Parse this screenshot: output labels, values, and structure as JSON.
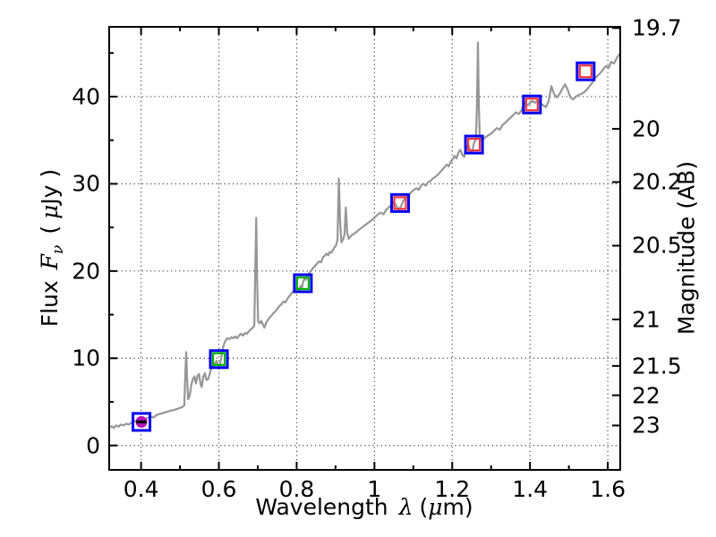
{
  "labels": {
    "xlabel_text": "Wavelength",
    "xlabel_lambda": "λ",
    "xlabel_unit_open": "(",
    "xlabel_mu": "μ",
    "xlabel_unit_close": "m)",
    "ylabel_flux_text": "Flux",
    "ylabel_flux_F": "F",
    "ylabel_flux_nu": "ν",
    "ylabel_flux_unit_open": "(",
    "ylabel_flux_mu": "μ",
    "ylabel_flux_unit_close": "Jy )",
    "ylabel_mag": "Magnitude (AB)"
  },
  "chart_data": {
    "type": "line",
    "title": "",
    "xlabel": "Wavelength λ (μm)",
    "ylabel_left": "Flux Fν (μJy)",
    "ylabel_right": "Magnitude (AB)",
    "grid": "dotted lines at major ticks of bottom and left axes",
    "legend": "none",
    "xlim": [
      0.318,
      1.632
    ],
    "ylim_flux": [
      -2.8,
      48.0
    ],
    "x_major_ticks": [
      0.4,
      0.6,
      0.8,
      1.0,
      1.2,
      1.4,
      1.6
    ],
    "x_major_tick_labels": [
      "0.4",
      "0.6",
      "0.8",
      "1",
      "1.2",
      "1.4",
      "1.6"
    ],
    "x_minor_ticks": [
      0.5,
      0.7,
      0.9,
      1.1,
      1.3,
      1.5
    ],
    "y_major_ticks": [
      0,
      10,
      20,
      30,
      40
    ],
    "y_major_tick_labels": [
      "0",
      "10",
      "20",
      "30",
      "40"
    ],
    "y_minor_ticks": [
      5,
      15,
      25,
      35,
      45
    ],
    "right_axis": {
      "tick_mags": [
        19.7,
        20,
        20.2,
        20.5,
        21,
        21.5,
        22,
        23
      ],
      "tick_labels": [
        "19.7",
        "20",
        "20.2",
        "20.5",
        "21",
        "21.5",
        "22",
        "23"
      ],
      "ab_zero_point": 23.9
    },
    "colors": {
      "spectrum": "#969696",
      "model_square": "#0000ee",
      "observed_red": "#f5333f",
      "observed_green": "#00b200",
      "observed_magenta": "#b413b4",
      "errorbar": "#000000",
      "grid": "#444444",
      "frame": "#000000"
    },
    "series": [
      {
        "name": "spectrum_template",
        "type": "line",
        "color": "#969696",
        "width": 2.2,
        "points": [
          [
            0.318,
            2.05
          ],
          [
            0.325,
            2.2
          ],
          [
            0.33,
            2.0
          ],
          [
            0.336,
            2.3
          ],
          [
            0.342,
            2.15
          ],
          [
            0.348,
            2.4
          ],
          [
            0.355,
            2.3
          ],
          [
            0.362,
            2.5
          ],
          [
            0.368,
            2.4
          ],
          [
            0.375,
            2.6
          ],
          [
            0.382,
            2.8
          ],
          [
            0.388,
            2.7
          ],
          [
            0.394,
            2.9
          ],
          [
            0.4,
            3.0
          ],
          [
            0.406,
            3.1
          ],
          [
            0.412,
            3.0
          ],
          [
            0.418,
            3.2
          ],
          [
            0.425,
            3.3
          ],
          [
            0.432,
            3.2
          ],
          [
            0.44,
            3.5
          ],
          [
            0.448,
            3.6
          ],
          [
            0.455,
            3.7
          ],
          [
            0.462,
            3.8
          ],
          [
            0.47,
            3.9
          ],
          [
            0.478,
            4.0
          ],
          [
            0.486,
            4.1
          ],
          [
            0.494,
            4.2
          ],
          [
            0.5,
            4.3
          ],
          [
            0.506,
            4.4
          ],
          [
            0.511,
            4.6
          ],
          [
            0.5135,
            8.0
          ],
          [
            0.516,
            10.7
          ],
          [
            0.5185,
            7.5
          ],
          [
            0.521,
            5.3
          ],
          [
            0.525,
            5.7
          ],
          [
            0.529,
            6.9
          ],
          [
            0.533,
            7.6
          ],
          [
            0.537,
            7.9
          ],
          [
            0.541,
            7.1
          ],
          [
            0.545,
            8.0
          ],
          [
            0.549,
            8.2
          ],
          [
            0.553,
            7.0
          ],
          [
            0.556,
            6.7
          ],
          [
            0.56,
            7.9
          ],
          [
            0.564,
            8.3
          ],
          [
            0.568,
            7.5
          ],
          [
            0.572,
            7.6
          ],
          [
            0.576,
            8.1
          ],
          [
            0.58,
            8.8
          ],
          [
            0.585,
            9.1
          ],
          [
            0.59,
            9.4
          ],
          [
            0.594,
            9.7
          ],
          [
            0.598,
            9.2
          ],
          [
            0.601,
            8.9
          ],
          [
            0.605,
            9.8
          ],
          [
            0.609,
            10.9
          ],
          [
            0.613,
            11.6
          ],
          [
            0.617,
            12.0
          ],
          [
            0.622,
            12.3
          ],
          [
            0.627,
            12.2
          ],
          [
            0.632,
            12.4
          ],
          [
            0.637,
            12.3
          ],
          [
            0.642,
            12.5
          ],
          [
            0.647,
            12.3
          ],
          [
            0.652,
            12.6
          ],
          [
            0.657,
            12.8
          ],
          [
            0.662,
            12.6
          ],
          [
            0.667,
            12.9
          ],
          [
            0.672,
            12.8
          ],
          [
            0.677,
            13.1
          ],
          [
            0.682,
            13.3
          ],
          [
            0.687,
            13.5
          ],
          [
            0.691,
            13.7
          ],
          [
            0.6935,
            20.0
          ],
          [
            0.696,
            26.1
          ],
          [
            0.6985,
            19.0
          ],
          [
            0.701,
            14.2
          ],
          [
            0.705,
            14.0
          ],
          [
            0.709,
            14.3
          ],
          [
            0.713,
            13.9
          ],
          [
            0.717,
            13.5
          ],
          [
            0.721,
            14.0
          ],
          [
            0.726,
            14.4
          ],
          [
            0.731,
            14.7
          ],
          [
            0.736,
            14.9
          ],
          [
            0.741,
            15.2
          ],
          [
            0.746,
            15.4
          ],
          [
            0.751,
            15.7
          ],
          [
            0.756,
            16.0
          ],
          [
            0.761,
            16.2
          ],
          [
            0.766,
            16.5
          ],
          [
            0.771,
            16.4
          ],
          [
            0.776,
            16.8
          ],
          [
            0.781,
            17.1
          ],
          [
            0.786,
            17.4
          ],
          [
            0.791,
            17.7
          ],
          [
            0.796,
            17.9
          ],
          [
            0.801,
            18.1
          ],
          [
            0.806,
            17.8
          ],
          [
            0.81,
            18.3
          ],
          [
            0.8135,
            18.0
          ],
          [
            0.817,
            18.8
          ],
          [
            0.82,
            19.1
          ],
          [
            0.824,
            19.0
          ],
          [
            0.828,
            19.5
          ],
          [
            0.833,
            19.8
          ],
          [
            0.838,
            20.1
          ],
          [
            0.843,
            20.4
          ],
          [
            0.848,
            20.6
          ],
          [
            0.853,
            20.9
          ],
          [
            0.858,
            21.1
          ],
          [
            0.863,
            21.0
          ],
          [
            0.868,
            21.6
          ],
          [
            0.873,
            21.8
          ],
          [
            0.877,
            22.0
          ],
          [
            0.881,
            21.8
          ],
          [
            0.885,
            22.2
          ],
          [
            0.889,
            22.1
          ],
          [
            0.893,
            22.4
          ],
          [
            0.897,
            22.7
          ],
          [
            0.901,
            22.9
          ],
          [
            0.905,
            23.6
          ],
          [
            0.9085,
            30.6
          ],
          [
            0.912,
            25.5
          ],
          [
            0.915,
            23.3
          ],
          [
            0.919,
            23.6
          ],
          [
            0.923,
            24.2
          ],
          [
            0.9265,
            27.3
          ],
          [
            0.93,
            24.4
          ],
          [
            0.934,
            23.7
          ],
          [
            0.939,
            24.0
          ],
          [
            0.944,
            24.2
          ],
          [
            0.949,
            24.3
          ],
          [
            0.954,
            24.5
          ],
          [
            0.959,
            24.7
          ],
          [
            0.965,
            24.9
          ],
          [
            0.971,
            25.1
          ],
          [
            0.977,
            25.3
          ],
          [
            0.983,
            25.5
          ],
          [
            0.989,
            25.7
          ],
          [
            0.995,
            25.9
          ],
          [
            1.002,
            26.2
          ],
          [
            1.009,
            26.5
          ],
          [
            1.016,
            26.7
          ],
          [
            1.023,
            26.5
          ],
          [
            1.03,
            27.0
          ],
          [
            1.037,
            27.3
          ],
          [
            1.044,
            27.6
          ],
          [
            1.05,
            27.9
          ],
          [
            1.056,
            27.5
          ],
          [
            1.062,
            27.0
          ],
          [
            1.068,
            27.4
          ],
          [
            1.074,
            28.0
          ],
          [
            1.08,
            28.4
          ],
          [
            1.087,
            28.7
          ],
          [
            1.094,
            29.0
          ],
          [
            1.101,
            29.3
          ],
          [
            1.108,
            29.5
          ],
          [
            1.114,
            29.3
          ],
          [
            1.12,
            29.8
          ],
          [
            1.126,
            30.0
          ],
          [
            1.132,
            29.8
          ],
          [
            1.138,
            30.2
          ],
          [
            1.144,
            30.3
          ],
          [
            1.15,
            30.6
          ],
          [
            1.156,
            30.8
          ],
          [
            1.162,
            31.0
          ],
          [
            1.168,
            31.3
          ],
          [
            1.174,
            31.6
          ],
          [
            1.18,
            31.9
          ],
          [
            1.186,
            32.2
          ],
          [
            1.191,
            32.0
          ],
          [
            1.196,
            32.5
          ],
          [
            1.201,
            32.8
          ],
          [
            1.206,
            33.2
          ],
          [
            1.211,
            32.9
          ],
          [
            1.216,
            33.6
          ],
          [
            1.221,
            33.9
          ],
          [
            1.226,
            33.3
          ],
          [
            1.231,
            33.1
          ],
          [
            1.236,
            34.1
          ],
          [
            1.241,
            34.5
          ],
          [
            1.246,
            33.8
          ],
          [
            1.251,
            33.6
          ],
          [
            1.256,
            34.7
          ],
          [
            1.261,
            35.1
          ],
          [
            1.2635,
            39.0
          ],
          [
            1.266,
            46.2
          ],
          [
            1.2685,
            39.0
          ],
          [
            1.271,
            35.3
          ],
          [
            1.276,
            35.0
          ],
          [
            1.281,
            35.2
          ],
          [
            1.287,
            35.4
          ],
          [
            1.294,
            35.6
          ],
          [
            1.301,
            35.8
          ],
          [
            1.308,
            36.1
          ],
          [
            1.315,
            36.4
          ],
          [
            1.322,
            36.2
          ],
          [
            1.329,
            36.7
          ],
          [
            1.336,
            37.0
          ],
          [
            1.343,
            37.3
          ],
          [
            1.35,
            37.6
          ],
          [
            1.357,
            37.9
          ],
          [
            1.364,
            38.2
          ],
          [
            1.371,
            38.0
          ],
          [
            1.378,
            38.4
          ],
          [
            1.385,
            39.3
          ],
          [
            1.392,
            39.0
          ],
          [
            1.399,
            39.2
          ],
          [
            1.406,
            39.5
          ],
          [
            1.413,
            39.3
          ],
          [
            1.42,
            39.6
          ],
          [
            1.427,
            39.2
          ],
          [
            1.434,
            39.0
          ],
          [
            1.441,
            38.8
          ],
          [
            1.448,
            39.5
          ],
          [
            1.455,
            41.2
          ],
          [
            1.462,
            40.3
          ],
          [
            1.469,
            39.9
          ],
          [
            1.476,
            40.3
          ],
          [
            1.483,
            40.9
          ],
          [
            1.49,
            41.4
          ],
          [
            1.497,
            40.8
          ],
          [
            1.504,
            39.9
          ],
          [
            1.511,
            39.7
          ],
          [
            1.518,
            40.0
          ],
          [
            1.525,
            40.2
          ],
          [
            1.532,
            40.3
          ],
          [
            1.539,
            40.5
          ],
          [
            1.546,
            40.8
          ],
          [
            1.553,
            41.2
          ],
          [
            1.56,
            41.6
          ],
          [
            1.567,
            42.1
          ],
          [
            1.574,
            42.4
          ],
          [
            1.581,
            42.7
          ],
          [
            1.588,
            43.1
          ],
          [
            1.595,
            43.5
          ],
          [
            1.602,
            43.3
          ],
          [
            1.609,
            44.0
          ],
          [
            1.616,
            43.8
          ],
          [
            1.623,
            44.4
          ],
          [
            1.63,
            44.9
          ]
        ]
      },
      {
        "name": "model_photometry",
        "type": "scatter",
        "marker": "open-square",
        "color": "#0000ee",
        "size": 19,
        "stroke_width": 3,
        "points": [
          [
            0.401,
            2.7
          ],
          [
            0.6,
            9.9
          ],
          [
            0.816,
            18.6
          ],
          [
            1.066,
            27.8
          ],
          [
            1.256,
            34.5
          ],
          [
            1.405,
            39.1
          ],
          [
            1.543,
            42.9
          ]
        ]
      },
      {
        "name": "observed_photometry_green",
        "type": "scatter",
        "marker": "open-square",
        "color": "#00b200",
        "size": 13,
        "stroke_width": 2.2,
        "points": [
          [
            0.6,
            9.9
          ],
          [
            0.816,
            18.6
          ]
        ]
      },
      {
        "name": "observed_photometry_red",
        "type": "scatter",
        "marker": "open-square",
        "color": "#f5333f",
        "size": 13,
        "stroke_width": 2.2,
        "points": [
          [
            1.066,
            27.8
          ],
          [
            1.256,
            34.5
          ],
          [
            1.405,
            39.1
          ],
          [
            1.543,
            42.9
          ]
        ]
      },
      {
        "name": "observed_photometry_magenta",
        "type": "scatter",
        "marker": "filled-circle",
        "color": "#b413b4",
        "size": 13,
        "xerr_um": 0.013,
        "points": [
          [
            0.401,
            2.7
          ]
        ]
      }
    ]
  }
}
